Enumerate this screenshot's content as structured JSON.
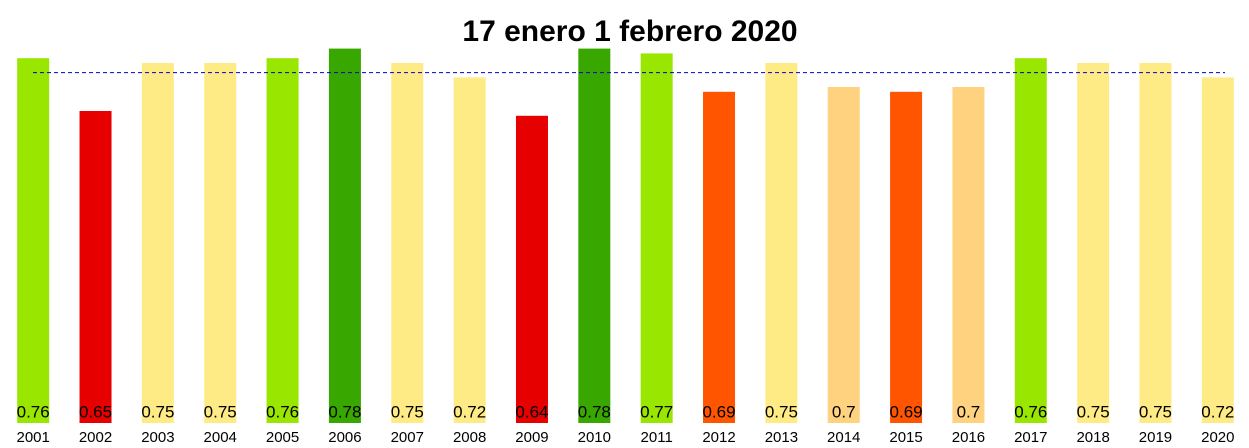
{
  "chart_data": {
    "type": "bar",
    "title": "17 enero 1 febrero 2020",
    "categories": [
      "2001",
      "2002",
      "2003",
      "2004",
      "2005",
      "2006",
      "2007",
      "2008",
      "2009",
      "2010",
      "2011",
      "2012",
      "2013",
      "2014",
      "2015",
      "2016",
      "2017",
      "2018",
      "2019",
      "2020"
    ],
    "values": [
      0.76,
      0.65,
      0.75,
      0.75,
      0.76,
      0.78,
      0.75,
      0.72,
      0.64,
      0.78,
      0.77,
      0.69,
      0.75,
      0.7,
      0.69,
      0.7,
      0.76,
      0.75,
      0.75,
      0.72
    ],
    "colors": [
      "#99e600",
      "#e60000",
      "#ffeb85",
      "#ffeb85",
      "#99e600",
      "#38a800",
      "#ffeb85",
      "#ffeb85",
      "#e60000",
      "#38a800",
      "#99e600",
      "#ff5500",
      "#ffeb85",
      "#ffd280",
      "#ff5500",
      "#ffd280",
      "#99e600",
      "#ffeb85",
      "#ffeb85",
      "#ffeb85"
    ],
    "reference_line": {
      "value": 0.73,
      "color": "#0000cc"
    },
    "ylim": [
      0,
      0.8
    ]
  }
}
